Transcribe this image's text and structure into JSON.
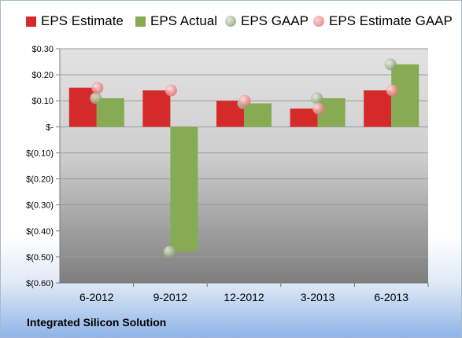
{
  "chart_data": {
    "type": "bar",
    "title": "",
    "xlabel": "",
    "ylabel": "",
    "ylim": [
      -0.6,
      0.3
    ],
    "grid": true,
    "legend_position": "top",
    "categories": [
      "6-2012",
      "9-2012",
      "12-2012",
      "3-2013",
      "6-2013"
    ],
    "y_tick_labels": [
      "$0.30",
      "$0.20",
      "$0.10",
      "$-",
      "$(0.10)",
      "$(0.20)",
      "$(0.30)",
      "$(0.40)",
      "$(0.50)",
      "$(0.60)"
    ],
    "y_tick_values": [
      0.3,
      0.2,
      0.1,
      0.0,
      -0.1,
      -0.2,
      -0.3,
      -0.4,
      -0.5,
      -0.6
    ],
    "series": [
      {
        "name": "EPS Estimate",
        "kind": "bar",
        "color": "#d42a2a",
        "values": [
          0.15,
          0.14,
          0.1,
          0.07,
          0.14
        ]
      },
      {
        "name": "EPS Actual",
        "kind": "bar",
        "color": "#86ab52",
        "values": [
          0.11,
          -0.48,
          0.09,
          0.11,
          0.24
        ]
      },
      {
        "name": "EPS GAAP",
        "kind": "point",
        "color": "#9fb38f",
        "values": [
          0.11,
          -0.48,
          0.09,
          0.11,
          0.24
        ]
      },
      {
        "name": "EPS Estimate GAAP",
        "kind": "point",
        "color": "#e88a8a",
        "values": [
          0.15,
          0.14,
          0.1,
          0.07,
          0.14
        ]
      }
    ]
  },
  "footer": {
    "company": "Integrated Silicon Solution"
  }
}
